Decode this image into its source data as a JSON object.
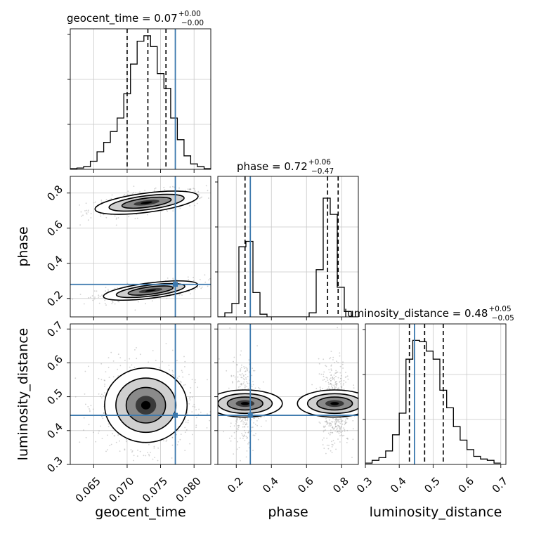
{
  "chart_data": {
    "type": "corner",
    "parameters": [
      "geocent_time",
      "phase",
      "luminosity_distance"
    ],
    "colors": {
      "truth": "#3b78ad",
      "hist": "#000000",
      "quantile": "#000000",
      "grid": "#c8c8c8",
      "scatter": "#9a9a9a"
    },
    "axes": {
      "geocent_time": {
        "label": "geocent_time",
        "lim": [
          0.0615,
          0.0825
        ],
        "ticks": [
          0.065,
          0.07,
          0.075,
          0.08
        ],
        "tick_labels": [
          "0.065",
          "0.070",
          "0.075",
          "0.080"
        ],
        "truth": 0.0772,
        "quantiles": [
          0.07,
          0.0731,
          0.0758
        ],
        "title": {
          "base": "geocent_time = 0.07",
          "plus": "+0.00",
          "minus": "−0.00"
        }
      },
      "phase": {
        "label": "phase",
        "lim": [
          0.095,
          0.895
        ],
        "ticks": [
          0.2,
          0.4,
          0.6,
          0.8
        ],
        "tick_labels": [
          "0.2",
          "0.4",
          "0.6",
          "0.8"
        ],
        "truth": 0.28,
        "quantiles": [
          0.25,
          0.72,
          0.78
        ],
        "title": {
          "base": "phase = 0.72",
          "plus": "+0.06",
          "minus": "−0.47"
        }
      },
      "luminosity_distance": {
        "label": "luminosity_distance",
        "lim": [
          0.3,
          0.715
        ],
        "ticks": [
          0.3,
          0.4,
          0.5,
          0.6,
          0.7
        ],
        "tick_labels": [
          "0.3",
          "0.4",
          "0.5",
          "0.6",
          "0.7"
        ],
        "truth": 0.445,
        "quantiles": [
          0.43,
          0.475,
          0.53
        ],
        "title": {
          "base": "luminosity_distance = 0.48",
          "plus": "+0.05",
          "minus": "−0.05"
        }
      }
    },
    "histograms": {
      "geocent_time": {
        "bin_edges": [
          0.0615,
          0.0625,
          0.0635,
          0.0645,
          0.0655,
          0.0665,
          0.0675,
          0.0685,
          0.0695,
          0.0705,
          0.0715,
          0.0725,
          0.0735,
          0.0745,
          0.0755,
          0.0765,
          0.0775,
          0.0785,
          0.0795,
          0.0805,
          0.0815,
          0.0825
        ],
        "counts": [
          0.005,
          0.01,
          0.02,
          0.06,
          0.13,
          0.2,
          0.28,
          0.38,
          0.56,
          0.78,
          0.95,
          0.99,
          0.91,
          0.71,
          0.6,
          0.38,
          0.22,
          0.1,
          0.04,
          0.02,
          0.005
        ]
      },
      "phase": {
        "bin_edges": [
          0.095,
          0.135,
          0.175,
          0.215,
          0.255,
          0.295,
          0.335,
          0.375,
          0.415,
          0.455,
          0.495,
          0.535,
          0.575,
          0.615,
          0.655,
          0.695,
          0.735,
          0.775,
          0.815,
          0.855,
          0.895
        ],
        "counts": [
          0.0,
          0.03,
          0.1,
          0.52,
          0.56,
          0.18,
          0.02,
          0.0,
          0.0,
          0.0,
          0.0,
          0.0,
          0.0,
          0.03,
          0.35,
          0.88,
          0.76,
          0.22,
          0.04,
          0.0
        ]
      },
      "luminosity_distance": {
        "bin_edges": [
          0.3,
          0.32,
          0.34,
          0.36,
          0.38,
          0.4,
          0.42,
          0.44,
          0.46,
          0.48,
          0.5,
          0.52,
          0.54,
          0.56,
          0.58,
          0.6,
          0.62,
          0.64,
          0.66,
          0.68,
          0.7
        ],
        "counts": [
          0.01,
          0.03,
          0.05,
          0.1,
          0.22,
          0.38,
          0.78,
          0.92,
          0.91,
          0.84,
          0.78,
          0.55,
          0.42,
          0.28,
          0.18,
          0.11,
          0.06,
          0.04,
          0.03,
          0.01
        ]
      }
    },
    "density_blobs": [
      {
        "panel": "phase_vs_geocent_time",
        "mode": [
          0.0729,
          0.745
        ],
        "sd": [
          0.0035,
          0.03
        ],
        "rho": 0.55,
        "weight": 0.55
      },
      {
        "panel": "phase_vs_geocent_time",
        "mode": [
          0.0735,
          0.245
        ],
        "sd": [
          0.0032,
          0.025
        ],
        "rho": 0.6,
        "weight": 0.45
      },
      {
        "panel": "luminosity_distance_vs_geocent_time",
        "mode": [
          0.0728,
          0.475
        ],
        "sd": [
          0.0028,
          0.05
        ],
        "rho": 0.0,
        "weight": 1.0
      },
      {
        "panel": "luminosity_distance_vs_phase",
        "mode": [
          0.25,
          0.48
        ],
        "sd": [
          0.035,
          0.05
        ],
        "rho": 0.0,
        "weight": 0.4
      },
      {
        "panel": "luminosity_distance_vs_phase",
        "mode": [
          0.76,
          0.48
        ],
        "sd": [
          0.035,
          0.05
        ],
        "rho": 0.0,
        "weight": 0.6
      }
    ]
  }
}
